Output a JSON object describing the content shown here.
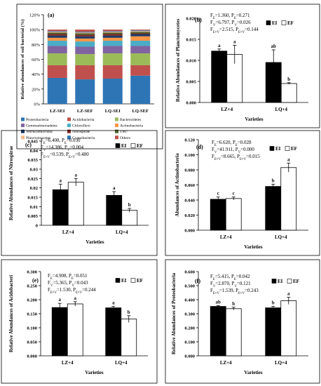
{
  "colors": {
    "ei_fill": "#000000",
    "ef_fill": "#ffffff",
    "stack_palette": [
      "#2e75b6",
      "#c0504d",
      "#9bbb59",
      "#8064a2",
      "#4bacc6",
      "#f79646",
      "#1f3864",
      "#7f2622",
      "#4f6228",
      "#f8b88b"
    ]
  },
  "legend_labels": {
    "ei": "EI",
    "ef": "EF"
  },
  "chart_data": [
    {
      "panel": "(a)",
      "type": "bar",
      "stacked": true,
      "ylabel": "Relative abundances of soil bacterial (%)",
      "ylim": [
        0,
        120
      ],
      "yticks": [
        "0%",
        "20%",
        "40%",
        "60%",
        "80%",
        "100%",
        "120%"
      ],
      "categories": [
        "LZ-SEI",
        "LZ-SEF",
        "LQ-SEI",
        "LQ-SEF"
      ],
      "series": [
        {
          "name": "Proteobacteria",
          "values": [
            35,
            33,
            34,
            38
          ]
        },
        {
          "name": "Acidobacteria",
          "values": [
            17,
            19,
            18,
            14
          ]
        },
        {
          "name": "Bacteroidetes",
          "values": [
            16,
            15,
            16,
            16
          ]
        },
        {
          "name": "Gemmatimonadetes",
          "values": [
            10,
            10,
            10,
            10
          ]
        },
        {
          "name": "Chloroflexi",
          "values": [
            7,
            7,
            7,
            7
          ]
        },
        {
          "name": "Actinobacteria",
          "values": [
            4,
            4,
            4,
            6
          ]
        },
        {
          "name": "Verrucomicrobia",
          "values": [
            3,
            3,
            3,
            3
          ]
        },
        {
          "name": "Nitrospirae",
          "values": [
            2,
            2,
            2,
            1
          ]
        },
        {
          "name": "TM7",
          "values": [
            2,
            2,
            2,
            2
          ]
        },
        {
          "name": "Planctomycetes",
          "values": [
            1,
            1,
            1,
            1
          ]
        },
        {
          "name": "Cyanobacteria",
          "values": [
            1,
            1,
            1,
            1
          ]
        },
        {
          "name": "Others",
          "values": [
            2,
            3,
            2,
            1
          ]
        }
      ]
    },
    {
      "panel": "(b)",
      "type": "bar",
      "ylabel": "Relative Abundances of Planctomycetes",
      "xlabel": "Varieties",
      "ylim": [
        0,
        0.02
      ],
      "yticks": [
        "0.000",
        "0.005",
        "0.010",
        "0.015",
        "0.020"
      ],
      "categories": [
        "LZ+4",
        "LQ+4"
      ],
      "series": [
        {
          "name": "EI",
          "values": [
            0.0122,
            0.0095
          ],
          "errors": [
            0.0005,
            0.003
          ],
          "labels": [
            "a",
            "ab"
          ]
        },
        {
          "name": "EF",
          "values": [
            0.0114,
            0.0045
          ],
          "errors": [
            0.0022,
            0.0002
          ],
          "labels": [
            "a",
            "b"
          ]
        }
      ],
      "stats": [
        "F_E=1.360, P_E=0.271",
        "F_V=6.797, P_V=0.026",
        "F_E×V=2.515, P_E×V=0.144"
      ]
    },
    {
      "panel": "(c)",
      "type": "bar",
      "ylabel": "Relative Abundances of Nitrospirae",
      "xlabel": "Varieties",
      "ylim": [
        0,
        0.045
      ],
      "yticks": [
        "0",
        "0.005",
        "0.01",
        "0.015",
        "0.02",
        "0.025",
        "0.03",
        "0.035",
        "0.04",
        "0.045"
      ],
      "categories": [
        "LZ+4",
        "LQ+4"
      ],
      "series": [
        {
          "name": "EI",
          "values": [
            0.019,
            0.016
          ],
          "errors": [
            0.003,
            0.002
          ],
          "labels": [
            "a",
            "a"
          ]
        },
        {
          "name": "EF",
          "values": [
            0.023,
            0.008
          ],
          "errors": [
            0.002,
            0.001
          ],
          "labels": [
            "a",
            "b"
          ]
        }
      ],
      "stats": [
        "F_E=6.408, P_E=0.030",
        "F_V=14.386, P_V=0.004",
        "F_E×V=0.539, P_E×V=0.480"
      ]
    },
    {
      "panel": "(d)",
      "type": "bar",
      "ylabel": "Abundances of Actinobacteria",
      "xlabel": "Varieties",
      "ylim": [
        0,
        0.12
      ],
      "yticks": [
        "0.000",
        "0.020",
        "0.040",
        "0.060",
        "0.080",
        "0.100",
        "0.120"
      ],
      "categories": [
        "LZ+4",
        "LQ+4"
      ],
      "series": [
        {
          "name": "EI",
          "values": [
            0.041,
            0.058
          ],
          "errors": [
            0.003,
            0.003
          ],
          "labels": [
            "c",
            "b"
          ]
        },
        {
          "name": "EF",
          "values": [
            0.042,
            0.083
          ],
          "errors": [
            0.002,
            0.006
          ],
          "labels": [
            "c",
            "a"
          ]
        }
      ],
      "stats": [
        "F_E=6.620, P_E=0.028",
        "F_V=41.911, P_V=0.000",
        "F_E×V=8.665, P_E×V=0.015"
      ]
    },
    {
      "panel": "(e)",
      "type": "bar",
      "ylabel": "Relative Abundances of Acidobacteri",
      "xlabel": "Varieties",
      "ylim": [
        0,
        0.3
      ],
      "yticks": [
        "0.000",
        "0.050",
        "0.100",
        "0.150",
        "0.200",
        "0.250",
        "0.300"
      ],
      "categories": [
        "LZ+4",
        "LQ+4"
      ],
      "series": [
        {
          "name": "EI",
          "values": [
            0.172,
            0.171
          ],
          "errors": [
            0.015,
            0.005
          ],
          "labels": [
            "a",
            "a"
          ]
        },
        {
          "name": "EF",
          "values": [
            0.185,
            0.131
          ],
          "errors": [
            0.008,
            0.012
          ],
          "labels": [
            "a",
            "b"
          ]
        }
      ],
      "stats": [
        "F_E=4.908, P_E=0.051",
        "F_V=5.365, P_V=0.043",
        "F_E×V=1.530, P_E×V=0.244"
      ]
    },
    {
      "panel": "(f)",
      "type": "bar",
      "ylabel": "Relative Abundances of Proteobacteria",
      "xlabel": "Varieties",
      "ylim": [
        0,
        0.6
      ],
      "yticks": [
        "0.000",
        "0.100",
        "0.200",
        "0.300",
        "0.400",
        "0.500",
        "0.600"
      ],
      "categories": [
        "LZ+4",
        "LQ+4"
      ],
      "series": [
        {
          "name": "EI",
          "values": [
            0.352,
            0.342
          ],
          "errors": [
            0.005,
            0.01
          ],
          "labels": [
            "ab",
            "b"
          ]
        },
        {
          "name": "EF",
          "values": [
            0.336,
            0.392
          ],
          "errors": [
            0.01,
            0.025
          ],
          "labels": [
            "b",
            "a"
          ]
        }
      ],
      "stats": [
        "F_E=5.415, P_E=0.042",
        "F_V=2.870, P_V=0.121",
        "F_E×V=1.539, P_E×V=0.243"
      ]
    }
  ]
}
